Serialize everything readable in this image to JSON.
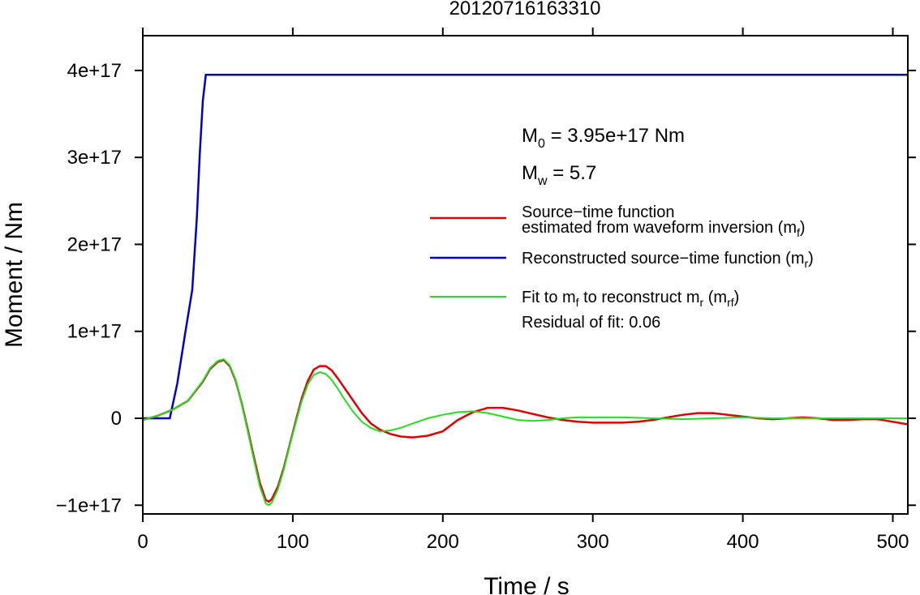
{
  "chart_data": {
    "type": "line",
    "title": "20120716163310",
    "xlabel": "Time / s",
    "ylabel": "Moment / Nm",
    "xlim": [
      0,
      510
    ],
    "ylim": [
      -1.1e+17,
      4.4e+17
    ],
    "x_ticks": [
      0,
      100,
      200,
      300,
      400,
      500
    ],
    "x_tick_labels": [
      "0",
      "100",
      "200",
      "300",
      "400",
      "500"
    ],
    "y_ticks": [
      -1e+17,
      0,
      1e+17,
      2e+17,
      3e+17,
      4e+17
    ],
    "y_tick_labels": [
      "−1e+17",
      "0",
      "1e+17",
      "2e+17",
      "3e+17",
      "4e+17"
    ],
    "grid": false,
    "legend_position": "right",
    "annotations": {
      "m0_base": "M",
      "m0_sub": "0",
      "m0_rest": " = 3.95e+17 Nm",
      "mw_base": "M",
      "mw_sub": "w",
      "mw_rest": " = 5.7",
      "residual": "Residual of fit: 0.06"
    },
    "series": [
      {
        "key": "mf",
        "legend_line1": "Source−time function",
        "legend_base": "estimated from waveform inversion (m",
        "legend_sub": "f",
        "legend_close": ")",
        "color": "#dd0000",
        "x": [
          0,
          10,
          20,
          30,
          40,
          45,
          50,
          54,
          58,
          62,
          66,
          70,
          74,
          78,
          82,
          84,
          86,
          90,
          94,
          98,
          102,
          106,
          110,
          114,
          118,
          122,
          126,
          130,
          134,
          140,
          146,
          152,
          158,
          165,
          172,
          180,
          190,
          200,
          210,
          220,
          230,
          240,
          250,
          260,
          270,
          280,
          290,
          300,
          310,
          320,
          330,
          340,
          350,
          360,
          370,
          380,
          390,
          400,
          410,
          420,
          430,
          440,
          450,
          460,
          470,
          480,
          490,
          500,
          510
        ],
        "y": [
          -2000000000000000.0,
          3000000000000000.0,
          1e+16,
          2e+16,
          4.2e+16,
          5.7e+16,
          6.5e+16,
          6.7e+16,
          6e+16,
          4.3e+16,
          1.7e+16,
          -1.3e+16,
          -4.4e+16,
          -7.4e+16,
          -9.4e+16,
          -9.6e+16,
          -9.3e+16,
          -7.9e+16,
          -5.7e+16,
          -3e+16,
          -3000000000000000.0,
          2.3e+16,
          4.3e+16,
          5.6e+16,
          6e+16,
          6e+16,
          5.5e+16,
          4.6e+16,
          3.6e+16,
          2.1e+16,
          6000000000000000.0,
          -6000000000000000.0,
          -1.3e+16,
          -1.8e+16,
          -2.1e+16,
          -2.2e+16,
          -2e+16,
          -1.5e+16,
          -2000000000000000.0,
          7000000000000000.0,
          1.2e+16,
          1.2e+16,
          9000000000000000.0,
          5000000000000000.0,
          1000000000000000.0,
          -2000000000000000.0,
          -4000000000000000.0,
          -5000000000000000.0,
          -5000000000000000.0,
          -5000000000000000.0,
          -4000000000000000.0,
          -2000000000000000.0,
          1000000000000000.0,
          4000000000000000.0,
          6000000000000000.0,
          6000000000000000.0,
          4000000000000000.0,
          2000000000000000.0,
          0,
          -1000000000000000.0,
          0,
          1000000000000000.0,
          0,
          -2000000000000000.0,
          -2000000000000000.0,
          -1000000000000000.0,
          -1000000000000000.0,
          -4000000000000000.0,
          -7000000000000000.0
        ]
      },
      {
        "key": "mr",
        "legend_base": "Reconstructed source−time function (m",
        "legend_sub": "r",
        "legend_close": ")",
        "color": "#0000cc",
        "x": [
          0,
          18,
          23,
          28,
          33,
          36,
          38,
          40,
          42,
          510
        ],
        "y": [
          0,
          0,
          4e+16,
          9.5e+16,
          1.48e+17,
          2.3e+17,
          3.05e+17,
          3.65e+17,
          3.95e+17,
          3.95e+17
        ]
      },
      {
        "key": "mrf",
        "legend_base": "Fit to m",
        "legend_sub1": "f",
        "legend_mid": " to reconstruct m",
        "legend_sub2": "r",
        "legend_mid2": " (m",
        "legend_sub3": "rf",
        "legend_close": ")",
        "color": "#22dd22",
        "x": [
          0,
          10,
          20,
          30,
          40,
          45,
          50,
          54,
          58,
          62,
          66,
          70,
          74,
          78,
          82,
          84,
          86,
          90,
          94,
          98,
          102,
          106,
          110,
          114,
          118,
          122,
          126,
          130,
          134,
          140,
          146,
          152,
          158,
          165,
          172,
          180,
          190,
          200,
          210,
          220,
          230,
          240,
          250,
          260,
          270,
          280,
          290,
          300,
          320,
          340,
          360,
          380,
          400,
          420,
          440,
          460,
          480,
          500,
          510
        ],
        "y": [
          -2000000000000000.0,
          3000000000000000.0,
          1e+16,
          2e+16,
          4.3e+16,
          5.8e+16,
          6.6e+16,
          6.8e+16,
          6.1e+16,
          4.4e+16,
          1.6e+16,
          -1.5e+16,
          -4.7e+16,
          -7.8e+16,
          -9.8e+16,
          -1e+17,
          -9.7e+16,
          -8.2e+16,
          -5.9e+16,
          -3.1e+16,
          -5000000000000000.0,
          2e+16,
          3.9e+16,
          5e+16,
          5.3e+16,
          5.1e+16,
          4.4e+16,
          3.4e+16,
          2.3e+16,
          8000000000000000.0,
          -4000000000000000.0,
          -1.1e+16,
          -1.5e+16,
          -1.4e+16,
          -1.1e+16,
          -6000000000000000.0,
          0,
          4000000000000000.0,
          7000000000000000.0,
          8000000000000000.0,
          6000000000000000.0,
          2000000000000000.0,
          -2000000000000000.0,
          -3000000000000000.0,
          -2000000000000000.0,
          0,
          1000000000000000.0,
          1000000000000000.0,
          1000000000000000.0,
          0,
          -1000000000000000.0,
          0,
          1000000000000000.0,
          0,
          0,
          0,
          0,
          0,
          0
        ]
      }
    ]
  }
}
